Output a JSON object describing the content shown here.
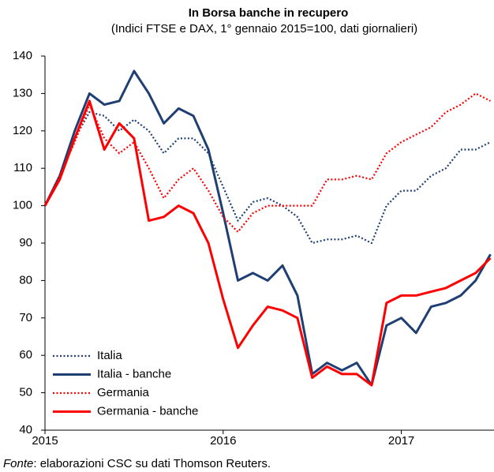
{
  "chart_data": {
    "type": "line",
    "title": "In Borsa banche in recupero",
    "subtitle": "(Indici FTSE e DAX, 1° gennaio 2015=100, dati giornalieri)",
    "source_label": "Fonte",
    "source_text": ": elaborazioni CSC su dati Thomson Reuters.",
    "x": [
      2015.0,
      2015.083,
      2015.167,
      2015.25,
      2015.333,
      2015.417,
      2015.5,
      2015.583,
      2015.667,
      2015.75,
      2015.833,
      2015.917,
      2016.0,
      2016.083,
      2016.167,
      2016.25,
      2016.333,
      2016.417,
      2016.5,
      2016.583,
      2016.667,
      2016.75,
      2016.833,
      2016.917,
      2017.0,
      2017.083,
      2017.167,
      2017.25,
      2017.333,
      2017.417,
      2017.5
    ],
    "series": [
      {
        "name": "Italia",
        "color": "#1f3f73",
        "dash": "dotted",
        "values": [
          100,
          108,
          118,
          125,
          124,
          120,
          123,
          120,
          114,
          118,
          118,
          114,
          105,
          96,
          101,
          102,
          100,
          97,
          90,
          91,
          91,
          92,
          90,
          100,
          104,
          104,
          108,
          110,
          115,
          115,
          117
        ]
      },
      {
        "name": "Italia - banche",
        "color": "#1f3f73",
        "dash": "solid",
        "values": [
          100,
          108,
          120,
          130,
          127,
          128,
          136,
          130,
          122,
          126,
          124,
          115,
          98,
          80,
          82,
          80,
          84,
          76,
          55,
          58,
          56,
          58,
          52,
          68,
          70,
          66,
          73,
          74,
          76,
          80,
          87
        ]
      },
      {
        "name": "Germania",
        "color": "#ff0000",
        "dash": "dotted",
        "values": [
          100,
          108,
          117,
          127,
          118,
          114,
          117,
          110,
          102,
          107,
          110,
          104,
          97,
          93,
          98,
          100,
          100,
          100,
          100,
          107,
          107,
          108,
          107,
          114,
          117,
          119,
          121,
          125,
          127,
          130,
          128
        ]
      },
      {
        "name": "Germania - banche",
        "color": "#ff0000",
        "dash": "solid",
        "values": [
          100,
          107,
          118,
          128,
          115,
          122,
          118,
          96,
          97,
          100,
          98,
          90,
          75,
          62,
          68,
          73,
          72,
          70,
          54,
          57,
          55,
          55,
          52,
          74,
          76,
          76,
          77,
          78,
          80,
          82,
          86
        ]
      }
    ],
    "xlim": [
      2015,
      2017.52
    ],
    "xticks": [
      2015,
      2016,
      2017
    ],
    "ylim": [
      40,
      140
    ],
    "yticks": [
      40,
      50,
      60,
      70,
      80,
      90,
      100,
      110,
      120,
      130,
      140
    ],
    "grid": false,
    "legend": "lower left"
  }
}
